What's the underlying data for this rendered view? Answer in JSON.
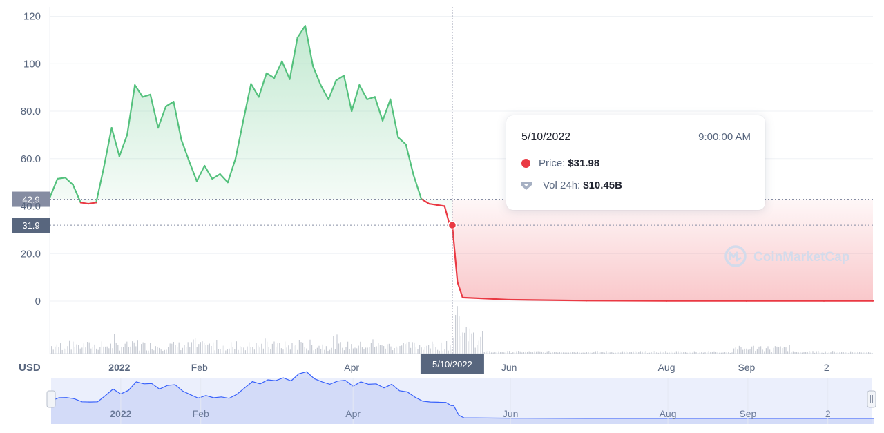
{
  "currency_label": "USD",
  "watermark": "CoinMarketCap",
  "tooltip": {
    "date": "5/10/2022",
    "time": "9:00:00 AM",
    "price_label": "Price:",
    "price_value": "$31.98",
    "volume_label": "Vol 24h:",
    "volume_value": "$10.45B"
  },
  "crosshair_label": "5/10/2022",
  "price_tags": [
    "42.9",
    "31.9"
  ],
  "colors": {
    "up": "#54c17d",
    "down": "#ea3943",
    "navigator_line": "#3861fb",
    "navigator_fill": "#e1e6fb",
    "axis_text": "#58667e",
    "tag_bg": "#858ca2",
    "tag_bg_active": "#58667e"
  },
  "x_axis_labels": [
    {
      "label": "2022",
      "bold": true
    },
    {
      "label": "Feb",
      "bold": false
    },
    {
      "label": "Apr",
      "bold": false
    },
    {
      "label": "Jun",
      "bold": false
    },
    {
      "label": "Aug",
      "bold": false
    },
    {
      "label": "Sep",
      "bold": false
    },
    {
      "label": "2",
      "bold": false
    }
  ],
  "chart_data": {
    "type": "line",
    "series": [
      {
        "x": [
          "2021-12-05",
          "2021-12-08",
          "2021-12-11",
          "2021-12-14",
          "2021-12-17",
          "2021-12-20",
          "2021-12-23",
          "2021-12-26",
          "2021-12-29",
          "2022-01-01",
          "2022-01-04",
          "2022-01-07",
          "2022-01-10",
          "2022-01-13",
          "2022-01-16",
          "2022-01-19",
          "2022-01-22",
          "2022-01-25",
          "2022-01-28",
          "2022-01-31",
          "2022-02-03",
          "2022-02-06",
          "2022-02-09",
          "2022-02-12",
          "2022-02-15",
          "2022-02-18",
          "2022-02-21",
          "2022-02-24",
          "2022-02-27",
          "2022-03-02",
          "2022-03-05",
          "2022-03-08",
          "2022-03-11",
          "2022-03-14",
          "2022-03-17",
          "2022-03-20",
          "2022-03-23",
          "2022-03-26",
          "2022-03-29",
          "2022-04-01",
          "2022-04-04",
          "2022-04-07",
          "2022-04-10",
          "2022-04-13",
          "2022-04-16",
          "2022-04-19",
          "2022-04-22",
          "2022-04-25",
          "2022-04-28",
          "2022-05-01",
          "2022-05-04",
          "2022-05-07",
          "2022-05-09",
          "2022-05-10",
          "2022-05-11",
          "2022-05-12",
          "2022-05-14",
          "2022-06-01",
          "2022-07-01",
          "2022-08-01",
          "2022-09-01",
          "2022-10-01",
          "2022-10-20"
        ],
        "y": [
          43.5,
          51.5,
          52.0,
          49.0,
          41.5,
          41.0,
          41.5,
          56.5,
          73.0,
          61.0,
          70.0,
          91.0,
          86.0,
          87.0,
          73.0,
          82.0,
          84.0,
          68.0,
          59.0,
          50.5,
          57.0,
          51.5,
          53.5,
          50.0,
          60.0,
          76.0,
          91.5,
          86.0,
          96.0,
          94.0,
          101.0,
          93.5,
          111.0,
          116.0,
          99.0,
          91.0,
          85.0,
          93.0,
          95.0,
          80.0,
          91.0,
          85.0,
          86.0,
          76.0,
          85.0,
          69.0,
          66.0,
          53.0,
          43.0,
          41.0,
          40.5,
          40.0,
          32.0,
          31.98,
          20.0,
          8.0,
          1.5,
          0.6,
          0.2,
          0.1,
          0.1,
          0.1,
          0.1
        ]
      }
    ],
    "y_ticks": [
      "0",
      "20.0",
      "40.0",
      "60.0",
      "80.0",
      "100",
      "120"
    ],
    "ylim": [
      0,
      120
    ],
    "xlim": [
      "2021-12-05",
      "2022-10-20"
    ],
    "grid": true,
    "legend": "none",
    "volume_bars": true,
    "navigator": true
  }
}
